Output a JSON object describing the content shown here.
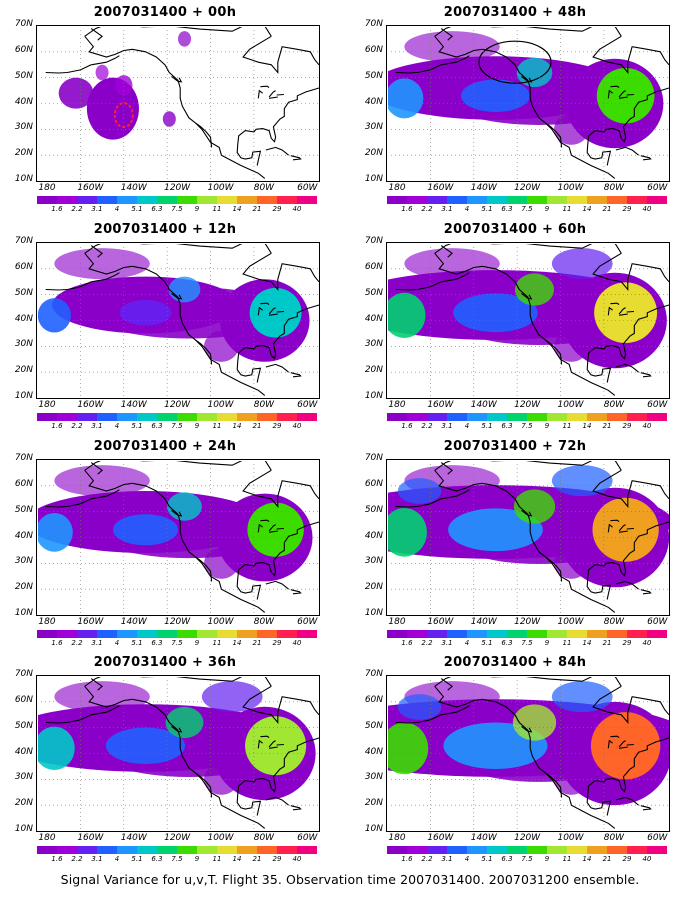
{
  "panels": [
    {
      "title": "2007031400  + 00h",
      "intensity": 0.0
    },
    {
      "title": "2007031400  + 12h",
      "intensity": 0.33
    },
    {
      "title": "2007031400  + 24h",
      "intensity": 0.5
    },
    {
      "title": "2007031400  + 36h",
      "intensity": 0.68
    },
    {
      "title": "2007031400  + 48h",
      "intensity": 0.55
    },
    {
      "title": "2007031400  + 60h",
      "intensity": 0.75
    },
    {
      "title": "2007031400  + 72h",
      "intensity": 0.88
    },
    {
      "title": "2007031400  + 84h",
      "intensity": 1.0
    }
  ],
  "axes": {
    "lat_labels": [
      "70N",
      "60N",
      "50N",
      "40N",
      "30N",
      "20N",
      "10N"
    ],
    "lon_labels": [
      "180",
      "160W",
      "140W",
      "120W",
      "100W",
      "80W",
      "60W"
    ]
  },
  "colorbar": {
    "labels": [
      "1.6",
      "2.2",
      "3.1",
      "4",
      "5.1",
      "6.3",
      "7.5",
      "9",
      "11",
      "14",
      "21",
      "29",
      "40"
    ],
    "colors": [
      "#8a00c8",
      "#a000d7",
      "#6420f0",
      "#2060ff",
      "#1e96ff",
      "#00c8c8",
      "#00d26e",
      "#3cdc00",
      "#a0e632",
      "#e6dc32",
      "#f0a020",
      "#ff6428",
      "#ff2050",
      "#f00082"
    ]
  },
  "caption": "Signal Variance for u,v,T. Flight 35. Observation time 2007031400. 2007031200 ensemble."
}
